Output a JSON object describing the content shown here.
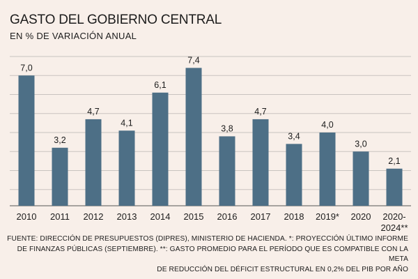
{
  "colors": {
    "background": "#f8efe9",
    "bar": "#4d6f86",
    "grid": "#c9c3bf",
    "text": "#1c1c1c"
  },
  "chart_data": {
    "type": "bar",
    "title": "GASTO DEL GOBIERNO CENTRAL",
    "subtitle": "EN % DE VARIACIÓN ANUAL",
    "categories": [
      "2010",
      "2011",
      "2012",
      "2013",
      "2014",
      "2015",
      "2016",
      "2017",
      "2018",
      "2019*",
      "2020",
      "2020-\n2024**"
    ],
    "values": [
      7.0,
      3.2,
      4.7,
      4.1,
      6.1,
      7.4,
      3.8,
      4.7,
      3.4,
      4.0,
      3.0,
      2.1
    ],
    "value_labels": [
      "7,0",
      "3,2",
      "4,7",
      "4,1",
      "6,1",
      "7,4",
      "3,8",
      "4,7",
      "3,4",
      "4,0",
      "3,0",
      "2,1"
    ],
    "ylim": [
      0,
      8
    ],
    "gridlines": [
      1,
      2,
      3,
      4,
      5,
      6,
      7,
      8
    ],
    "xlabel": "",
    "ylabel": "",
    "grid": true
  },
  "source_lines": [
    "FUENTE: DIRECCIÓN DE PRESUPUESTOS (DIPRES), MINISTERIO DE HACIENDA. *: PROYECCIÓN ÚLTIMO INFORME",
    "DE FINANZAS PÚBLICAS (SEPTIEMBRE). **: GASTO PROMEDIO PARA EL PERÍODO QUE ES COMPATIBLE CON LA META",
    "DE REDUCCIÓN DEL DÉFICIT ESTRUCTURAL EN 0,2% DEL PIB POR AÑO"
  ]
}
